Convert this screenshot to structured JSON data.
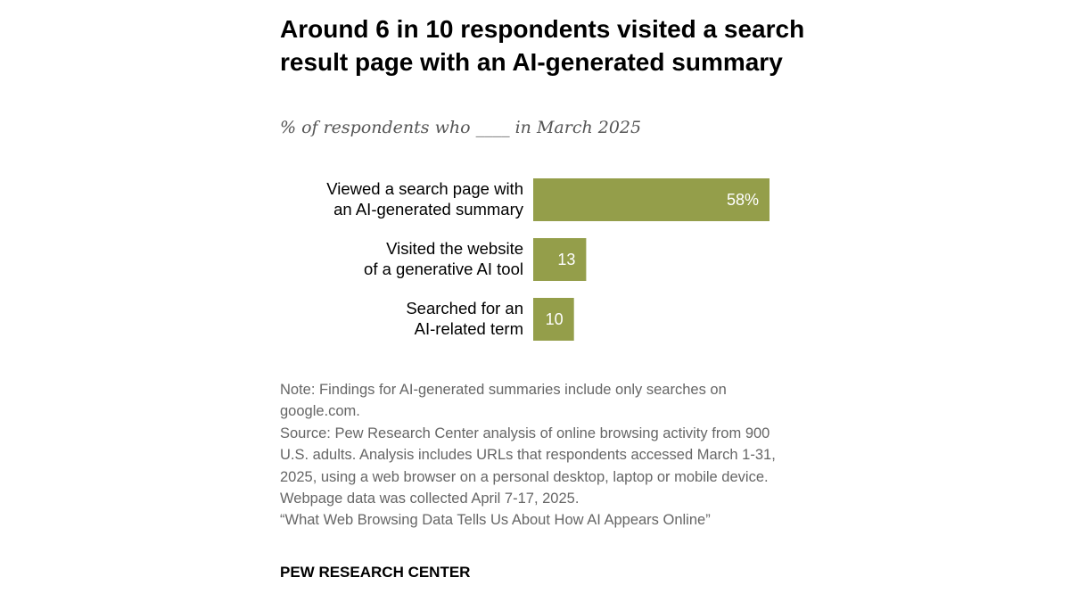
{
  "title": "Around 6 in 10 respondents visited a search result page with an AI-generated summary",
  "subtitle": "% of respondents who ____ in March 2025",
  "chart_data": {
    "type": "bar",
    "orientation": "horizontal",
    "categories": [
      [
        "Viewed a search page with",
        "an AI-generated summary"
      ],
      [
        "Visited the website",
        "of a generative AI tool"
      ],
      [
        "Searched for an",
        "AI-related term"
      ]
    ],
    "values": [
      58,
      13,
      10
    ],
    "data_labels": [
      "58%",
      "13",
      "10"
    ],
    "xlim": [
      0,
      100
    ],
    "color": "#949e4a",
    "grid": false
  },
  "notes": [
    "Note: Findings for AI-generated summaries include only searches on google.com.",
    "Source: Pew Research Center analysis of online browsing activity from 900 U.S. adults. Analysis includes URLs that respondents accessed March 1-31, 2025, using a web browser on a personal desktop, laptop or mobile device. Webpage data was collected April 7-17, 2025.",
    "“What Web Browsing Data Tells Us About How AI Appears Online”"
  ],
  "footer": "PEW RESEARCH CENTER"
}
